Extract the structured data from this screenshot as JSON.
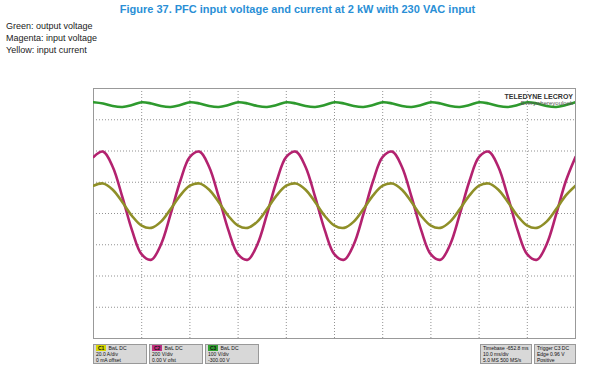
{
  "chart_data": {
    "type": "line",
    "title": "Figure 37. PFC input voltage and current at 2 kW with 230 VAC input",
    "x": [
      0,
      0.2,
      0.4,
      0.6,
      0.8,
      1,
      1.2,
      1.4,
      1.6,
      1.8,
      2,
      2.2,
      2.4,
      2.6,
      2.8,
      3,
      3.2,
      3.4,
      3.6,
      3.8,
      4,
      4.2,
      4.4,
      4.6,
      4.8,
      5,
      5.2,
      5.4,
      5.6,
      5.8,
      6,
      6.2,
      6.4,
      6.6,
      6.8,
      7,
      7.2,
      7.4,
      7.6,
      7.8,
      8,
      8.2,
      8.4,
      8.6,
      8.8,
      9,
      9.2,
      9.4,
      9.6,
      9.8,
      10
    ],
    "series": [
      {
        "name": "Green: output voltage",
        "color": "#2e9a2e",
        "values": [
          3.56,
          3.52,
          3.44,
          3.41,
          3.47,
          3.56,
          3.52,
          3.44,
          3.41,
          3.47,
          3.56,
          3.52,
          3.44,
          3.41,
          3.47,
          3.56,
          3.52,
          3.44,
          3.41,
          3.47,
          3.56,
          3.52,
          3.44,
          3.41,
          3.47,
          3.56,
          3.52,
          3.44,
          3.41,
          3.47,
          3.56,
          3.52,
          3.44,
          3.41,
          3.47,
          3.56,
          3.52,
          3.44,
          3.41,
          3.47,
          3.56,
          3.52,
          3.44,
          3.41,
          3.47,
          3.56,
          3.52,
          3.44,
          3.41,
          3.47,
          3.56
        ]
      },
      {
        "name": "Magenta: input voltage",
        "color": "#b3226f",
        "values": [
          1.81,
          1.98,
          1.49,
          0.52,
          -0.54,
          -1.31,
          -1.48,
          -0.99,
          -0.02,
          1.04,
          1.81,
          1.98,
          1.49,
          0.52,
          -0.54,
          -1.31,
          -1.48,
          -0.99,
          -0.02,
          1.04,
          1.81,
          1.98,
          1.49,
          0.52,
          -0.54,
          -1.31,
          -1.48,
          -0.99,
          -0.02,
          1.04,
          1.81,
          1.98,
          1.49,
          0.52,
          -0.54,
          -1.31,
          -1.48,
          -0.99,
          -0.02,
          1.04,
          1.81,
          1.98,
          1.49,
          0.52,
          -0.54,
          -1.31,
          -1.48,
          -0.99,
          -0.02,
          1.04,
          1.81
        ]
      },
      {
        "name": "Yellow: input current",
        "color": "#8f8f28",
        "values": [
          0.89,
          0.96,
          0.76,
          0.36,
          -0.08,
          -0.39,
          -0.46,
          -0.26,
          0.14,
          0.58,
          0.89,
          0.96,
          0.76,
          0.36,
          -0.08,
          -0.39,
          -0.46,
          -0.26,
          0.14,
          0.58,
          0.89,
          0.96,
          0.76,
          0.36,
          -0.08,
          -0.39,
          -0.46,
          -0.26,
          0.14,
          0.58,
          0.89,
          0.96,
          0.76,
          0.36,
          -0.08,
          -0.39,
          -0.46,
          -0.26,
          0.14,
          0.58,
          0.89,
          0.96,
          0.76,
          0.36,
          -0.08,
          -0.39,
          -0.46,
          -0.26,
          0.14,
          0.58,
          0.89
        ]
      }
    ],
    "xlim": [
      0,
      10
    ],
    "xticks": [
      0,
      1,
      2,
      3,
      4,
      5,
      6,
      7,
      8,
      9,
      10
    ],
    "ylim": [
      -4,
      4
    ],
    "yticks": [
      -4,
      -3,
      -2,
      -1,
      0,
      1,
      2,
      3,
      4
    ],
    "grid": true,
    "tick_labels": false,
    "logo": [
      "TELEDYNE LECROY",
      "Everywhereyoulook"
    ],
    "channels": [
      {
        "label": "C1",
        "color": "#d6d600",
        "lines": [
          "BwL DC",
          "20.0 A/div",
          "0 mA offset"
        ]
      },
      {
        "label": "C2",
        "color": "#c03080",
        "lines": [
          "BwL DC",
          "200 V/div",
          "0.00 V ofst"
        ]
      },
      {
        "label": "C3",
        "color": "#30a030",
        "lines": [
          "BwL DC",
          "100 V/div",
          "-300.00 V"
        ]
      }
    ],
    "timebase": [
      "Timebase -652.8 ms",
      "10.0 ms/div",
      "5.0 MS 500 MS/s"
    ],
    "trigger": [
      "Trigger C3 DC",
      "Edge 0.96 V",
      "Positive"
    ]
  }
}
